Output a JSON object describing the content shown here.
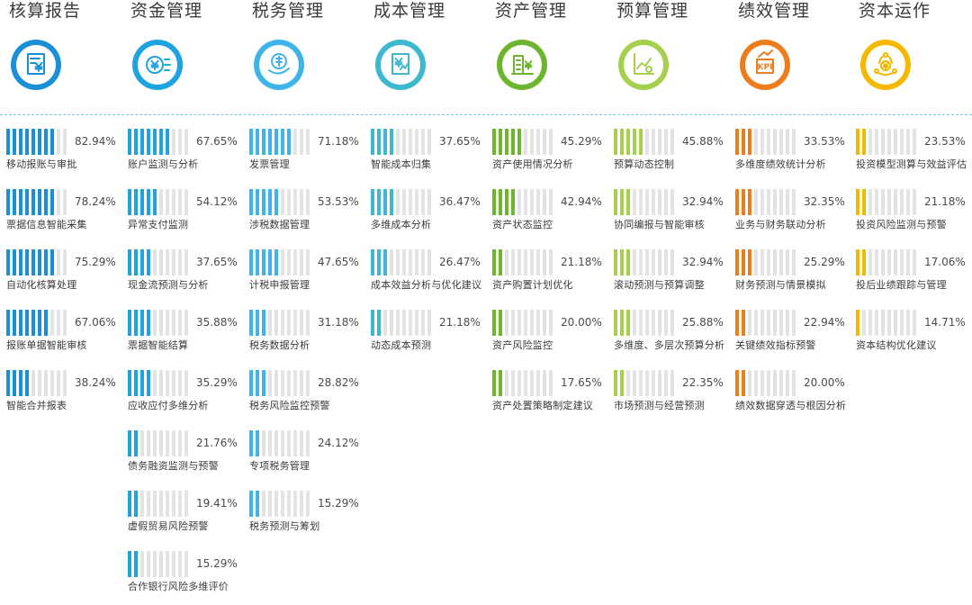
{
  "chart_data": {
    "type": "bar",
    "unit": "%",
    "segments_per_bar": 10,
    "groups": [
      {
        "title": "核算报告",
        "icon": "invoice-yen-icon",
        "color": "#1a8fd6",
        "items": [
          {
            "label": "移动报账与审批",
            "value": 82.94,
            "pct": "82.94%"
          },
          {
            "label": "票据信息智能采集",
            "value": 78.24,
            "pct": "78.24%"
          },
          {
            "label": "自动化核算处理",
            "value": 75.29,
            "pct": "75.29%"
          },
          {
            "label": "报账单据智能审核",
            "value": 67.06,
            "pct": "67.06%"
          },
          {
            "label": "智能合并报表",
            "value": 38.24,
            "pct": "38.24%"
          }
        ]
      },
      {
        "title": "资金管理",
        "icon": "coin-yen-icon",
        "color": "#1ea3e0",
        "items": [
          {
            "label": "账户监测与分析",
            "value": 67.65,
            "pct": "67.65%"
          },
          {
            "label": "异常支付监测",
            "value": 54.12,
            "pct": "54.12%"
          },
          {
            "label": "现金流预测与分析",
            "value": 37.65,
            "pct": "37.65%"
          },
          {
            "label": "票据智能结算",
            "value": 35.88,
            "pct": "35.88%"
          },
          {
            "label": "应收应付多维分析",
            "value": 35.29,
            "pct": "35.29%"
          },
          {
            "label": "债务融资监测与预警",
            "value": 21.76,
            "pct": "21.76%"
          },
          {
            "label": "虚假贸易风险预警",
            "value": 19.41,
            "pct": "19.41%"
          },
          {
            "label": "合作银行风险多维评价",
            "value": 15.29,
            "pct": "15.29%"
          }
        ]
      },
      {
        "title": "税务管理",
        "icon": "tax-hand-icon",
        "color": "#3fb4e8",
        "items": [
          {
            "label": "发票管理",
            "value": 71.18,
            "pct": "71.18%"
          },
          {
            "label": "涉税数据管理",
            "value": 53.53,
            "pct": "53.53%"
          },
          {
            "label": "计税申报管理",
            "value": 47.65,
            "pct": "47.65%"
          },
          {
            "label": "税务数据分析",
            "value": 31.18,
            "pct": "31.18%"
          },
          {
            "label": "税务风险监控预警",
            "value": 28.82,
            "pct": "28.82%"
          },
          {
            "label": "专项税务管理",
            "value": 24.12,
            "pct": "24.12%"
          },
          {
            "label": "税务预测与筹划",
            "value": 15.29,
            "pct": "15.29%"
          }
        ]
      },
      {
        "title": "成本管理",
        "icon": "cost-document-icon",
        "color": "#3db8cf",
        "items": [
          {
            "label": "智能成本归集",
            "value": 37.65,
            "pct": "37.65%"
          },
          {
            "label": "多维成本分析",
            "value": 36.47,
            "pct": "36.47%"
          },
          {
            "label": "成本效益分析与优化建议",
            "value": 26.47,
            "pct": "26.47%"
          },
          {
            "label": "动态成本预测",
            "value": 21.18,
            "pct": "21.18%"
          }
        ]
      },
      {
        "title": "资产管理",
        "icon": "building-yen-icon",
        "color": "#6cb52d",
        "items": [
          {
            "label": "资产使用情况分析",
            "value": 45.29,
            "pct": "45.29%"
          },
          {
            "label": "资产状态监控",
            "value": 42.94,
            "pct": "42.94%"
          },
          {
            "label": "资产购置计划优化",
            "value": 21.18,
            "pct": "21.18%"
          },
          {
            "label": "资产风险监控",
            "value": 20.0,
            "pct": "20.00%"
          },
          {
            "label": "资产处置策略制定建议",
            "value": 17.65,
            "pct": "17.65%"
          }
        ]
      },
      {
        "title": "预算管理",
        "icon": "trend-chart-icon",
        "color": "#a6cf4e",
        "items": [
          {
            "label": "预算动态控制",
            "value": 45.88,
            "pct": "45.88%"
          },
          {
            "label": "协同编报与智能审核",
            "value": 32.94,
            "pct": "32.94%"
          },
          {
            "label": "滚动预测与预算调整",
            "value": 32.94,
            "pct": "32.94%"
          },
          {
            "label": "多维度、多层次预算分析",
            "value": 25.88,
            "pct": "25.88%"
          },
          {
            "label": "市场预测与经营预测",
            "value": 22.35,
            "pct": "22.35%"
          }
        ]
      },
      {
        "title": "绩效管理",
        "icon": "kpi-chart-icon",
        "color": "#ec7d1c",
        "items": [
          {
            "label": "多维度绩效统计分析",
            "value": 33.53,
            "pct": "33.53%"
          },
          {
            "label": "业务与财务联动分析",
            "value": 32.35,
            "pct": "32.35%"
          },
          {
            "label": "财务预测与情景模拟",
            "value": 25.29,
            "pct": "25.29%"
          },
          {
            "label": "关键绩效指标预警",
            "value": 22.94,
            "pct": "22.94%"
          },
          {
            "label": "绩效数据穿透与根因分析",
            "value": 20.0,
            "pct": "20.00%"
          }
        ]
      },
      {
        "title": "资本运作",
        "icon": "capital-flow-icon",
        "color": "#f5b800",
        "items": [
          {
            "label": "投资模型测算与效益评估",
            "value": 23.53,
            "pct": "23.53%"
          },
          {
            "label": "投资风险监测与预警",
            "value": 21.18,
            "pct": "21.18%"
          },
          {
            "label": "投后业绩跟踪与管理",
            "value": 17.06,
            "pct": "17.06%"
          },
          {
            "label": "资本结构优化建议",
            "value": 14.71,
            "pct": "14.71%"
          }
        ]
      }
    ]
  }
}
